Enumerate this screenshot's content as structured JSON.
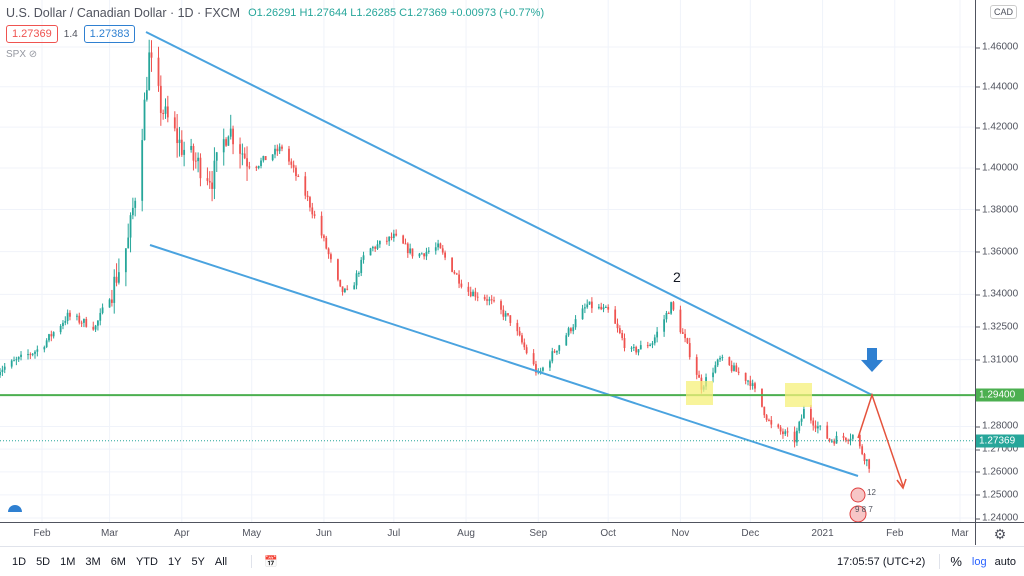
{
  "header": {
    "symbol": "U.S. Dollar / Canadian Dollar · 1D · FXCM",
    "ohlc": "O1.26291 H1.27644 L1.26285 C1.27369 +0.00973 (+0.77%)",
    "bid": "1.27369",
    "spread": "1.4",
    "ask": "1.27383",
    "indicator": "SPX"
  },
  "axis": {
    "currency": "CAD",
    "last_price": "1.27369",
    "level_price": "1.29400",
    "tick_labels": [
      "1.46000",
      "1.44000",
      "1.42000",
      "1.40000",
      "1.38000",
      "1.36000",
      "1.34000",
      "1.32500",
      "1.31000",
      "1.28000",
      "1.27000",
      "1.26000",
      "1.25000",
      "1.24000"
    ]
  },
  "colors": {
    "up": "#26a69a",
    "down": "#ef5350",
    "trend": "#4aa3df",
    "level": "#4caf50",
    "highlight": "#f5f07a",
    "arrow_up": "#2f80d1",
    "arrow_red": "#e5533d"
  },
  "annotation": {
    "wave_label": "2"
  },
  "events": {
    "a": "12",
    "b": "9 8 7"
  },
  "bottom": {
    "ranges": [
      "1D",
      "5D",
      "1M",
      "3M",
      "6M",
      "YTD",
      "1Y",
      "5Y",
      "All"
    ],
    "clock": "17:05:57 (UTC+2)",
    "percent": "%",
    "log": "log",
    "auto": "auto"
  },
  "chart_data": {
    "type": "candlestick",
    "title": "U.S. Dollar / Canadian Dollar · 1D · FXCM",
    "ylabel": "CAD",
    "scale": "log",
    "ylim": [
      1.235,
      1.475
    ],
    "x_ticks": [
      "Feb",
      "Mar",
      "Apr",
      "May",
      "Jun",
      "Jul",
      "Aug",
      "Sep",
      "Oct",
      "Nov",
      "Dec",
      "2021",
      "Feb",
      "Mar"
    ],
    "close_path": [
      [
        "2020-01-13",
        1.305
      ],
      [
        "2020-01-31",
        1.315
      ],
      [
        "2020-02-12",
        1.33
      ],
      [
        "2020-02-24",
        1.325
      ],
      [
        "2020-03-02",
        1.342
      ],
      [
        "2020-03-09",
        1.365
      ],
      [
        "2020-03-13",
        1.395
      ],
      [
        "2020-03-18",
        1.455
      ],
      [
        "2020-03-23",
        1.43
      ],
      [
        "2020-04-01",
        1.41
      ],
      [
        "2020-04-14",
        1.395
      ],
      [
        "2020-04-21",
        1.42
      ],
      [
        "2020-05-01",
        1.4
      ],
      [
        "2020-05-14",
        1.41
      ],
      [
        "2020-05-25",
        1.385
      ],
      [
        "2020-06-01",
        1.365
      ],
      [
        "2020-06-08",
        1.342
      ],
      [
        "2020-06-12",
        1.34
      ],
      [
        "2020-06-19",
        1.36
      ],
      [
        "2020-07-01",
        1.367
      ],
      [
        "2020-07-10",
        1.358
      ],
      [
        "2020-07-20",
        1.362
      ],
      [
        "2020-08-01",
        1.342
      ],
      [
        "2020-08-10",
        1.338
      ],
      [
        "2020-08-20",
        1.328
      ],
      [
        "2020-09-01",
        1.303
      ],
      [
        "2020-09-10",
        1.317
      ],
      [
        "2020-09-22",
        1.335
      ],
      [
        "2020-10-01",
        1.332
      ],
      [
        "2020-10-10",
        1.313
      ],
      [
        "2020-10-20",
        1.318
      ],
      [
        "2020-10-28",
        1.335
      ],
      [
        "2020-11-05",
        1.313
      ],
      [
        "2020-11-10",
        1.298
      ],
      [
        "2020-11-18",
        1.31
      ],
      [
        "2020-12-01",
        1.3
      ],
      [
        "2020-12-10",
        1.28
      ],
      [
        "2020-12-20",
        1.274
      ],
      [
        "2020-12-24",
        1.287
      ],
      [
        "2021-01-04",
        1.274
      ],
      [
        "2021-01-14",
        1.276
      ],
      [
        "2021-01-21",
        1.263
      ],
      [
        "2021-01-22",
        1.27369
      ]
    ],
    "horizontal_level": 1.294
  }
}
